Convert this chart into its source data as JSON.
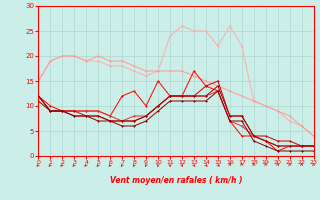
{
  "xlabel": "Vent moyen/en rafales ( km/h )",
  "xlim": [
    0,
    23
  ],
  "ylim": [
    0,
    30
  ],
  "xticks": [
    0,
    1,
    2,
    3,
    4,
    5,
    6,
    7,
    8,
    9,
    10,
    11,
    12,
    13,
    14,
    15,
    16,
    17,
    18,
    19,
    20,
    21,
    22,
    23
  ],
  "yticks": [
    0,
    5,
    10,
    15,
    20,
    25,
    30
  ],
  "background_color": "#cceee8",
  "grid_color": "#aad8d0",
  "line1_y": [
    15,
    19,
    20,
    20,
    19,
    20,
    19,
    19,
    18,
    17,
    17,
    17,
    17,
    16,
    15,
    14,
    13,
    12,
    11,
    10,
    9,
    8,
    6,
    4
  ],
  "line1_color": "#ff9999",
  "line2_y": [
    12,
    10,
    9,
    9,
    9,
    9,
    8,
    12,
    13,
    10,
    15,
    12,
    12,
    17,
    14,
    13,
    7,
    4,
    4,
    3,
    1,
    2,
    2,
    2
  ],
  "line2_color": "#ff0000",
  "line3_y": [
    12,
    9,
    9,
    9,
    8,
    8,
    7,
    7,
    7,
    8,
    10,
    12,
    12,
    12,
    14,
    15,
    8,
    8,
    4,
    4,
    3,
    3,
    2,
    2
  ],
  "line3_color": "#cc0000",
  "line4_y": [
    12,
    9,
    9,
    8,
    8,
    8,
    7,
    7,
    7,
    8,
    10,
    12,
    12,
    12,
    12,
    14,
    8,
    8,
    4,
    3,
    2,
    2,
    2,
    2
  ],
  "line4_color": "#aa0000",
  "line5_y": [
    11,
    9,
    9,
    8,
    8,
    7,
    7,
    6,
    6,
    7,
    9,
    11,
    11,
    11,
    11,
    13,
    7,
    7,
    3,
    2,
    1,
    1,
    1,
    1
  ],
  "line5_color": "#880000",
  "line6_y": [
    12,
    9,
    9,
    9,
    9,
    9,
    8,
    7,
    8,
    8,
    10,
    12,
    12,
    12,
    12,
    13,
    7,
    6,
    4,
    3,
    2,
    2,
    2,
    2
  ],
  "line6_color": "#dd3333",
  "line7_y": [
    15,
    19,
    20,
    20,
    19,
    19,
    18,
    18,
    17,
    16,
    17,
    24,
    26,
    25,
    25,
    22,
    26,
    22,
    11,
    10,
    9,
    7,
    6,
    4
  ],
  "line7_color": "#ffaaaa",
  "wind_angles": [
    -135,
    -130,
    -135,
    -130,
    -135,
    -125,
    -120,
    -115,
    -110,
    -105,
    -95,
    -85,
    -75,
    -65,
    -55,
    -45,
    80,
    90,
    95,
    100,
    80,
    100,
    85,
    95
  ]
}
